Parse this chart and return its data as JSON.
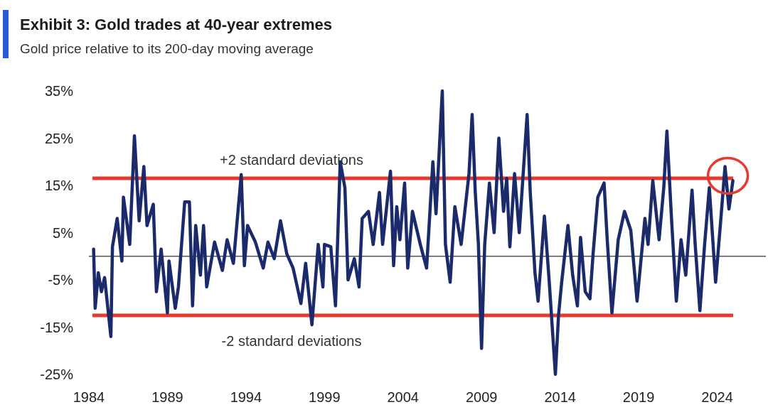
{
  "chart_data": {
    "type": "line",
    "title": "Exhibit 3: Gold trades at 40-year extremes",
    "subtitle": "Gold price relative to its 200-day moving average",
    "x": [
      1984.3,
      1984.4,
      1984.6,
      1984.8,
      1985.0,
      1985.4,
      1985.5,
      1985.8,
      1986.1,
      1986.2,
      1986.6,
      1986.9,
      1987.2,
      1987.5,
      1987.7,
      1988.1,
      1988.3,
      1988.6,
      1989.0,
      1989.1,
      1989.5,
      1989.7,
      1990.1,
      1990.4,
      1990.6,
      1990.8,
      1991.1,
      1991.3,
      1991.5,
      1992.0,
      1992.5,
      1992.8,
      1993.2,
      1993.7,
      1993.9,
      1994.1,
      1994.6,
      1995.1,
      1995.4,
      1995.8,
      1996.2,
      1996.6,
      1997.0,
      1997.5,
      1997.8,
      1998.2,
      1998.6,
      1998.9,
      1999.0,
      1999.4,
      1999.7,
      2000.0,
      2000.3,
      2000.5,
      2000.9,
      2001.2,
      2001.4,
      2001.8,
      2002.1,
      2002.5,
      2002.7,
      2003.2,
      2003.4,
      2003.6,
      2003.8,
      2004.1,
      2004.3,
      2004.6,
      2005.1,
      2005.5,
      2005.9,
      2006.1,
      2006.5,
      2006.7,
      2007.0,
      2007.3,
      2007.7,
      2008.2,
      2008.4,
      2008.6,
      2008.8,
      2009.0,
      2009.2,
      2009.5,
      2009.8,
      2010.1,
      2010.4,
      2010.6,
      2010.8,
      2011.1,
      2011.4,
      2011.9,
      2012.1,
      2012.4,
      2012.6,
      2013.0,
      2013.3,
      2013.7,
      2013.9,
      2014.1,
      2014.5,
      2014.8,
      2015.1,
      2015.3,
      2015.6,
      2015.9,
      2016.1,
      2016.4,
      2016.8,
      2017.0,
      2017.3,
      2017.7,
      2018.1,
      2018.5,
      2018.9,
      2019.4,
      2019.6,
      2019.9,
      2020.3,
      2020.6,
      2020.8,
      2021.1,
      2021.4,
      2021.7,
      2022.0,
      2022.4,
      2022.6,
      2022.9,
      2023.2,
      2023.5,
      2023.9,
      2024.2,
      2024.5,
      2024.75,
      2025.0
    ],
    "series": [
      {
        "color": "#1b2a6b",
        "values": [
          1.5,
          -11,
          -3.5,
          -7.5,
          -4.5,
          -17,
          2,
          8,
          -1,
          12.5,
          2.5,
          25.5,
          7.5,
          19,
          6.5,
          11,
          -7.5,
          1.5,
          -12,
          -1,
          -11,
          -6.5,
          11.5,
          11.5,
          -10.5,
          6.5,
          -4,
          6.5,
          -6.5,
          3,
          -3,
          3.5,
          -1.5,
          17.3,
          -2,
          6.5,
          3,
          -2.5,
          3,
          -0.5,
          7.5,
          0.5,
          -2.5,
          -10,
          -1.5,
          -14.5,
          2.5,
          -6.5,
          2.5,
          2,
          -10.5,
          20,
          14.5,
          -5,
          -0.5,
          -6.5,
          8,
          9.5,
          2.5,
          13.5,
          2.5,
          18,
          -2,
          10.5,
          3.5,
          15.5,
          -2.5,
          9.5,
          2.5,
          -2.5,
          20,
          9,
          35,
          2.5,
          -5.5,
          10.5,
          2.5,
          17.5,
          30,
          13.5,
          2.5,
          -19.5,
          2.5,
          15.5,
          5,
          25,
          9.5,
          16.5,
          2,
          17.5,
          5,
          30,
          13.5,
          -3.5,
          -9.5,
          8.5,
          -5,
          -25,
          -12.5,
          -5.5,
          6.5,
          -4,
          -10.5,
          4,
          -7.5,
          -9,
          0.5,
          12.5,
          15.5,
          3.5,
          -12,
          3.5,
          9.5,
          5.5,
          -9.5,
          8,
          2.5,
          16,
          3.5,
          14.5,
          26.5,
          7.5,
          -9.5,
          3.5,
          -4,
          14,
          2.5,
          -11.5,
          2.5,
          14.5,
          -5.5,
          6.5,
          19,
          10,
          16
        ]
      }
    ],
    "xlim": [
      1984,
      2027.1
    ],
    "ylim": [
      -25,
      35
    ],
    "xticks": [
      1984,
      1989,
      1994,
      1999,
      2004,
      2009,
      2014,
      2019,
      2024
    ],
    "yticks": [
      {
        "value": 35,
        "label": "35%"
      },
      {
        "value": 25,
        "label": "25%"
      },
      {
        "value": 15,
        "label": "15%"
      },
      {
        "value": 5,
        "label": "5%"
      },
      {
        "value": -5,
        "label": "-5%"
      },
      {
        "value": -15,
        "label": "-15%"
      },
      {
        "value": -25,
        "label": "-25%"
      }
    ],
    "ref_lines": [
      {
        "axis": "y",
        "value": 16.5,
        "label": "+2 standard deviations",
        "color": "#e8392f"
      },
      {
        "axis": "y",
        "value": -12.5,
        "label": "-2 standard deviations",
        "color": "#e8392f"
      }
    ],
    "grid": false,
    "marker": "none",
    "line_style": "solid"
  }
}
